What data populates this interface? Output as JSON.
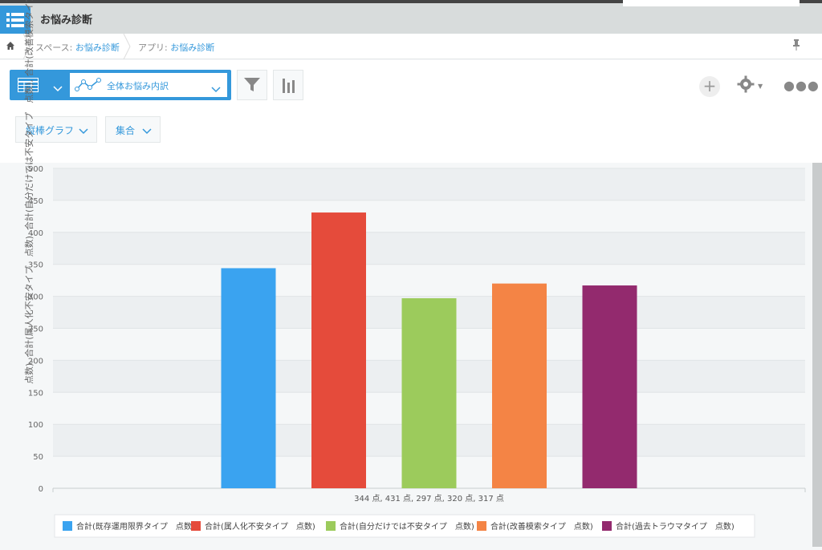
{
  "app": {
    "title": "お悩み診断"
  },
  "breadcrumb": {
    "space_prefix": "スペース: ",
    "space": "お悩み診断",
    "app_prefix": "アプリ: ",
    "app": "お悩み診断"
  },
  "toolbar": {
    "view_name": "全体お悩み内訳",
    "chart_type": "縦棒グラフ",
    "aggregation": "集合"
  },
  "colors": {
    "accent": "#3498db"
  },
  "chart_data": {
    "type": "bar",
    "categories": [
      "344 点, 431 点, 297 点, 320 点, 317 点"
    ],
    "series": [
      {
        "name": "合計(既存運用限界タイプ　点数)",
        "values": [
          344
        ],
        "color": "#3aa3f0"
      },
      {
        "name": "合計(属人化不安タイプ　点数)",
        "values": [
          431
        ],
        "color": "#e54b3b"
      },
      {
        "name": "合計(自分だけでは不安タイプ　点数)",
        "values": [
          297
        ],
        "color": "#9ccb5c"
      },
      {
        "name": "合計(改善模索タイプ　点数)",
        "values": [
          320
        ],
        "color": "#f48445"
      },
      {
        "name": "合計(過去トラウマタイプ　点数)",
        "values": [
          317
        ],
        "color": "#932a6e"
      }
    ],
    "ylabel": "合計(既存運用限界タイプ　点数), 合計(属人化不安タイプ　点数), 合計(自分だけでは不安タイプ　点数), 合計(改善模索タイプ　点数), 合計(過去トラウマタイプ　点数)",
    "ylabel_visible": "点数), 合計(属人化不安タイプ　点数), 合計(自分だけでは不安タイプ　点数), 合計(改善模索タイプ",
    "yticks": [
      0,
      50,
      100,
      150,
      200,
      250,
      300,
      350,
      400,
      450,
      500
    ],
    "ylim": [
      0,
      500
    ],
    "grid": true,
    "legend_position": "bottom"
  }
}
